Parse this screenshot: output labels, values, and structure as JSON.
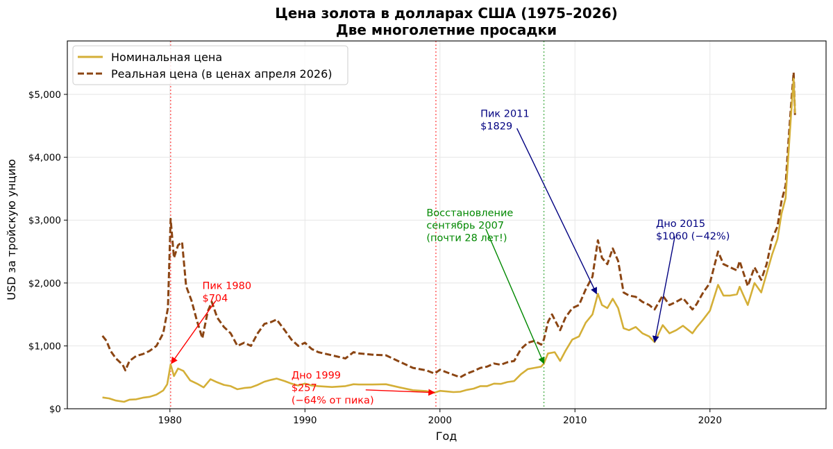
{
  "chart_data": {
    "type": "line",
    "title": "Цена золота в долларах США (1975–2026)",
    "subtitle": "Две многолетние просадки",
    "xlabel": "Год",
    "ylabel": "USD за тройскую унцию",
    "xlim": [
      1972.4,
      2028.6
    ],
    "ylim": [
      0,
      5850
    ],
    "x_ticks": [
      1980,
      1990,
      2000,
      2010,
      2020
    ],
    "x_tick_labels": [
      "1980",
      "1990",
      "2000",
      "2010",
      "2020"
    ],
    "y_ticks": [
      0,
      1000,
      2000,
      3000,
      4000,
      5000
    ],
    "y_tick_labels": [
      "$0",
      "$1,000",
      "$2,000",
      "$3,000",
      "$4,000",
      "$5,000"
    ],
    "grid": true,
    "legend_position": "top-left",
    "series": [
      {
        "name": "Номинальная цена",
        "color": "#D4AF37",
        "style": "solid",
        "points": [
          [
            1975.0,
            180
          ],
          [
            1975.5,
            165
          ],
          [
            1976.0,
            130
          ],
          [
            1976.6,
            110
          ],
          [
            1977.0,
            145
          ],
          [
            1977.5,
            150
          ],
          [
            1978.0,
            175
          ],
          [
            1978.5,
            190
          ],
          [
            1979.0,
            225
          ],
          [
            1979.5,
            290
          ],
          [
            1979.8,
            390
          ],
          [
            1980.05,
            704
          ],
          [
            1980.3,
            520
          ],
          [
            1980.6,
            640
          ],
          [
            1981.0,
            600
          ],
          [
            1981.5,
            450
          ],
          [
            1982.0,
            400
          ],
          [
            1982.5,
            340
          ],
          [
            1983.0,
            470
          ],
          [
            1983.5,
            420
          ],
          [
            1984.0,
            380
          ],
          [
            1984.5,
            360
          ],
          [
            1985.0,
            310
          ],
          [
            1985.5,
            330
          ],
          [
            1986.0,
            340
          ],
          [
            1986.5,
            380
          ],
          [
            1987.0,
            430
          ],
          [
            1987.5,
            460
          ],
          [
            1987.9,
            480
          ],
          [
            1988.5,
            440
          ],
          [
            1989.0,
            400
          ],
          [
            1989.5,
            370
          ],
          [
            1990.0,
            400
          ],
          [
            1990.5,
            370
          ],
          [
            1991.0,
            360
          ],
          [
            1992.0,
            345
          ],
          [
            1993.0,
            360
          ],
          [
            1993.6,
            390
          ],
          [
            1994.0,
            385
          ],
          [
            1995.0,
            385
          ],
          [
            1996.0,
            390
          ],
          [
            1997.0,
            340
          ],
          [
            1998.0,
            295
          ],
          [
            1999.0,
            280
          ],
          [
            1999.6,
            257
          ],
          [
            2000.0,
            285
          ],
          [
            2000.5,
            275
          ],
          [
            2001.0,
            265
          ],
          [
            2001.5,
            270
          ],
          [
            2002.0,
            300
          ],
          [
            2002.5,
            320
          ],
          [
            2003.0,
            360
          ],
          [
            2003.5,
            360
          ],
          [
            2004.0,
            400
          ],
          [
            2004.5,
            395
          ],
          [
            2005.0,
            425
          ],
          [
            2005.5,
            440
          ],
          [
            2006.0,
            550
          ],
          [
            2006.5,
            630
          ],
          [
            2007.0,
            650
          ],
          [
            2007.5,
            670
          ],
          [
            2007.7,
            720
          ],
          [
            2008.0,
            880
          ],
          [
            2008.5,
            900
          ],
          [
            2008.9,
            760
          ],
          [
            2009.3,
            920
          ],
          [
            2009.8,
            1100
          ],
          [
            2010.3,
            1150
          ],
          [
            2010.8,
            1370
          ],
          [
            2011.3,
            1500
          ],
          [
            2011.7,
            1829
          ],
          [
            2012.0,
            1650
          ],
          [
            2012.4,
            1600
          ],
          [
            2012.8,
            1750
          ],
          [
            2013.2,
            1600
          ],
          [
            2013.6,
            1280
          ],
          [
            2014.0,
            1250
          ],
          [
            2014.5,
            1300
          ],
          [
            2015.0,
            1200
          ],
          [
            2015.5,
            1150
          ],
          [
            2015.9,
            1060
          ],
          [
            2016.5,
            1330
          ],
          [
            2017.0,
            1200
          ],
          [
            2017.5,
            1250
          ],
          [
            2018.0,
            1320
          ],
          [
            2018.7,
            1200
          ],
          [
            2019.0,
            1290
          ],
          [
            2019.5,
            1420
          ],
          [
            2020.0,
            1560
          ],
          [
            2020.6,
            1970
          ],
          [
            2021.0,
            1800
          ],
          [
            2021.5,
            1800
          ],
          [
            2022.0,
            1820
          ],
          [
            2022.2,
            1940
          ],
          [
            2022.8,
            1650
          ],
          [
            2023.3,
            2000
          ],
          [
            2023.8,
            1850
          ],
          [
            2024.2,
            2150
          ],
          [
            2024.6,
            2450
          ],
          [
            2025.0,
            2700
          ],
          [
            2025.3,
            3100
          ],
          [
            2025.6,
            3350
          ],
          [
            2025.8,
            4000
          ],
          [
            2026.0,
            4650
          ],
          [
            2026.2,
            5250
          ],
          [
            2026.3,
            4700
          ]
        ]
      },
      {
        "name": "Реальная цена (в ценах апреля 2026)",
        "color": "#8B4513",
        "style": "dashed",
        "points": [
          [
            1975.0,
            1160
          ],
          [
            1975.3,
            1080
          ],
          [
            1975.6,
            920
          ],
          [
            1976.0,
            800
          ],
          [
            1976.5,
            700
          ],
          [
            1976.7,
            610
          ],
          [
            1977.0,
            760
          ],
          [
            1977.5,
            840
          ],
          [
            1978.0,
            870
          ],
          [
            1978.5,
            920
          ],
          [
            1979.0,
            1000
          ],
          [
            1979.5,
            1200
          ],
          [
            1979.85,
            1600
          ],
          [
            1980.05,
            3020
          ],
          [
            1980.3,
            2400
          ],
          [
            1980.6,
            2600
          ],
          [
            1980.9,
            2650
          ],
          [
            1981.2,
            1950
          ],
          [
            1981.6,
            1720
          ],
          [
            1982.0,
            1400
          ],
          [
            1982.4,
            1120
          ],
          [
            1982.8,
            1550
          ],
          [
            1983.1,
            1700
          ],
          [
            1983.5,
            1450
          ],
          [
            1984.0,
            1300
          ],
          [
            1984.5,
            1200
          ],
          [
            1985.0,
            1000
          ],
          [
            1985.5,
            1050
          ],
          [
            1986.0,
            1000
          ],
          [
            1986.5,
            1200
          ],
          [
            1987.0,
            1350
          ],
          [
            1987.5,
            1380
          ],
          [
            1987.9,
            1420
          ],
          [
            1988.5,
            1250
          ],
          [
            1989.0,
            1100
          ],
          [
            1989.5,
            1000
          ],
          [
            1990.0,
            1050
          ],
          [
            1990.5,
            950
          ],
          [
            1991.0,
            900
          ],
          [
            1992.0,
            850
          ],
          [
            1993.0,
            800
          ],
          [
            1993.6,
            900
          ],
          [
            1994.0,
            880
          ],
          [
            1995.0,
            860
          ],
          [
            1996.0,
            850
          ],
          [
            1997.0,
            750
          ],
          [
            1998.0,
            650
          ],
          [
            1999.0,
            610
          ],
          [
            1999.6,
            560
          ],
          [
            2000.0,
            620
          ],
          [
            2000.5,
            580
          ],
          [
            2001.0,
            540
          ],
          [
            2001.5,
            500
          ],
          [
            2002.0,
            560
          ],
          [
            2002.5,
            600
          ],
          [
            2003.0,
            650
          ],
          [
            2003.5,
            670
          ],
          [
            2004.0,
            720
          ],
          [
            2004.5,
            700
          ],
          [
            2005.0,
            740
          ],
          [
            2005.5,
            760
          ],
          [
            2006.0,
            950
          ],
          [
            2006.5,
            1050
          ],
          [
            2007.0,
            1080
          ],
          [
            2007.5,
            1020
          ],
          [
            2007.7,
            1100
          ],
          [
            2008.0,
            1380
          ],
          [
            2008.3,
            1500
          ],
          [
            2008.9,
            1250
          ],
          [
            2009.3,
            1450
          ],
          [
            2009.8,
            1600
          ],
          [
            2010.3,
            1650
          ],
          [
            2010.8,
            1900
          ],
          [
            2011.3,
            2100
          ],
          [
            2011.7,
            2680
          ],
          [
            2012.0,
            2400
          ],
          [
            2012.4,
            2300
          ],
          [
            2012.8,
            2550
          ],
          [
            2013.2,
            2350
          ],
          [
            2013.6,
            1850
          ],
          [
            2014.0,
            1800
          ],
          [
            2014.5,
            1780
          ],
          [
            2015.0,
            1700
          ],
          [
            2015.5,
            1650
          ],
          [
            2015.9,
            1580
          ],
          [
            2016.5,
            1800
          ],
          [
            2017.0,
            1650
          ],
          [
            2017.5,
            1700
          ],
          [
            2018.0,
            1760
          ],
          [
            2018.7,
            1580
          ],
          [
            2019.0,
            1660
          ],
          [
            2019.5,
            1850
          ],
          [
            2020.0,
            2000
          ],
          [
            2020.6,
            2500
          ],
          [
            2021.0,
            2300
          ],
          [
            2021.5,
            2250
          ],
          [
            2022.0,
            2200
          ],
          [
            2022.2,
            2350
          ],
          [
            2022.8,
            1950
          ],
          [
            2023.3,
            2250
          ],
          [
            2023.8,
            2050
          ],
          [
            2024.2,
            2300
          ],
          [
            2024.6,
            2700
          ],
          [
            2025.0,
            2900
          ],
          [
            2025.3,
            3300
          ],
          [
            2025.6,
            3550
          ],
          [
            2025.8,
            4200
          ],
          [
            2026.0,
            4800
          ],
          [
            2026.2,
            5350
          ],
          [
            2026.3,
            4650
          ]
        ]
      }
    ],
    "vlines": [
      {
        "x": 1980.05,
        "color": "#ff6666"
      },
      {
        "x": 1999.7,
        "color": "#ff6666"
      },
      {
        "x": 2007.7,
        "color": "#66bb66"
      }
    ],
    "annotations": [
      {
        "lines": [
          "Пик 1980",
          "$704"
        ],
        "color": "#ff0000",
        "text_x": 1982.4,
        "text_y": 1905,
        "arrow_from": [
          1983.4,
          1720
        ],
        "arrow_to": [
          1980.1,
          720
        ]
      },
      {
        "lines": [
          "Дно 1999",
          "$257",
          "(−64% от пика)"
        ],
        "color": "#ff0000",
        "text_x": 1989.0,
        "text_y": 480,
        "arrow_from": [
          1994.5,
          300
        ],
        "arrow_to": [
          1999.6,
          257
        ]
      },
      {
        "lines": [
          "Восстановление",
          "сентябрь 2007",
          "(почти 28 лет!)"
        ],
        "color": "#008800",
        "text_x": 1999.0,
        "text_y": 3065,
        "arrow_from": [
          2003.4,
          2860
        ],
        "arrow_to": [
          2007.7,
          720
        ]
      },
      {
        "lines": [
          "Пик 2011",
          "$1829"
        ],
        "color": "#000080",
        "text_x": 2003.0,
        "text_y": 4640,
        "arrow_from": [
          2005.7,
          4460
        ],
        "arrow_to": [
          2011.6,
          1829
        ]
      },
      {
        "lines": [
          "Дно 2015",
          "$1060 (−42%)"
        ],
        "color": "#000080",
        "text_x": 2016.0,
        "text_y": 2890,
        "arrow_from": [
          2017.4,
          2740
        ],
        "arrow_to": [
          2015.9,
          1060
        ]
      }
    ],
    "legend_entries": [
      {
        "label": "Номинальная цена",
        "color": "#D4AF37",
        "style": "solid"
      },
      {
        "label": "Реальная цена (в ценах апреля 2026)",
        "color": "#8B4513",
        "style": "dashed"
      }
    ]
  }
}
